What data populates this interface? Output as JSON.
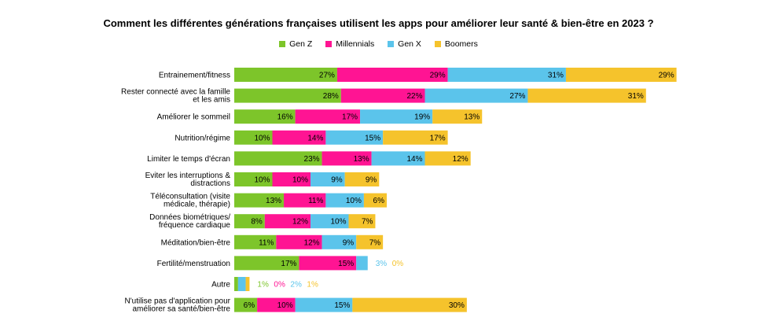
{
  "chart_data": {
    "type": "bar",
    "orientation": "horizontal",
    "stacked": true,
    "title": "Comment les différentes générations françaises utilisent les apps pour améliorer leur santé & bien-être en 2023 ?",
    "legend_position": "top",
    "grid": false,
    "categories": [
      "Entrainement/fitness",
      "Rester connecté avec la famille et les amis",
      "Améliorer le sommeil",
      "Nutrition/régime",
      "Limiter le temps d'écran",
      "Eviter les interruptions & distractions",
      "Téléconsultation (visite médicale, thérapie)",
      "Données biométriques/ fréquence cardiaque",
      "Méditation/bien-être",
      "Fertilité/menstruation",
      "Autre",
      "N'utilise pas d'application pour améliorer sa santé/bien-être"
    ],
    "series": [
      {
        "name": "Gen Z",
        "color": "#7dc52a",
        "values": [
          27,
          28,
          16,
          10,
          23,
          10,
          13,
          8,
          11,
          17,
          1,
          6
        ]
      },
      {
        "name": "Millennials",
        "color": "#ff1493",
        "values": [
          29,
          22,
          17,
          14,
          13,
          10,
          11,
          12,
          12,
          15,
          0,
          10
        ]
      },
      {
        "name": "Gen X",
        "color": "#5bc4eb",
        "values": [
          31,
          27,
          19,
          15,
          14,
          9,
          10,
          10,
          9,
          3,
          2,
          15
        ]
      },
      {
        "name": "Boomers",
        "color": "#f5c32c",
        "values": [
          29,
          31,
          13,
          17,
          12,
          9,
          6,
          7,
          7,
          0,
          1,
          30
        ]
      }
    ],
    "value_suffix": "%"
  }
}
